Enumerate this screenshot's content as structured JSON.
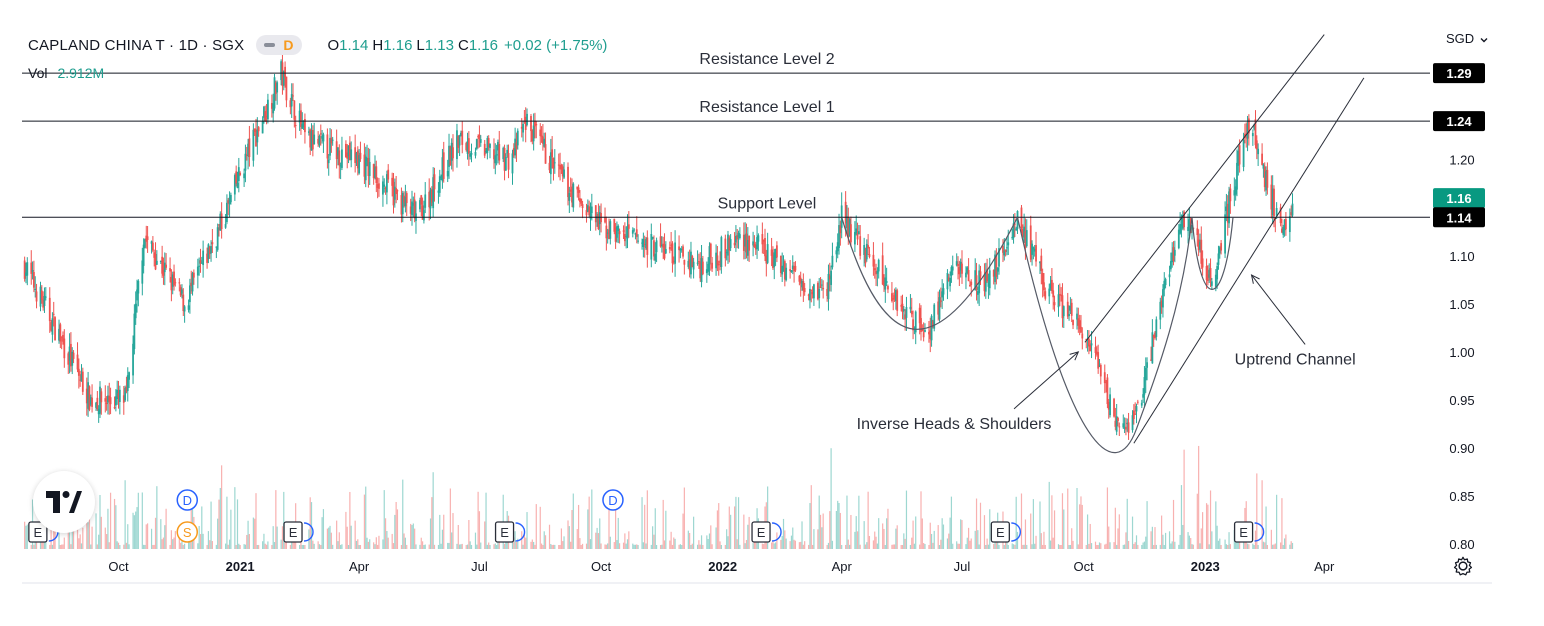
{
  "header": {
    "symbol": "CAPLAND CHINA T · 1D · SGX",
    "pill_label": "D",
    "ohlc": {
      "o_label": "O",
      "o": "1.14",
      "h_label": "H",
      "h": "1.16",
      "l_label": "L",
      "l": "1.13",
      "c_label": "C",
      "c": "1.16",
      "change": "+0.02 (+1.75%)"
    },
    "volume_label": "Vol",
    "volume_value": "2.912M",
    "currency": "SGD"
  },
  "colors": {
    "up": "#26a69a",
    "down": "#ef5350",
    "badge_bg": "#000000",
    "last_price_bg": "#089981",
    "annotation": "#2a2e39",
    "event_blue": "#2962ff",
    "event_orange": "#f79a1d"
  },
  "icons": {
    "logo": "tradingview-logo-icon",
    "settings": "gear-icon",
    "currency_menu": "chevron-down-icon"
  },
  "chart_data": {
    "type": "candlestick",
    "x_axis": {
      "type": "date",
      "ticks": [
        {
          "date": "2020-10-01",
          "label": "Oct",
          "bold": false
        },
        {
          "date": "2021-01-01",
          "label": "2021",
          "bold": true
        },
        {
          "date": "2021-04-01",
          "label": "Apr",
          "bold": false
        },
        {
          "date": "2021-07-01",
          "label": "Jul",
          "bold": false
        },
        {
          "date": "2021-10-01",
          "label": "Oct",
          "bold": false
        },
        {
          "date": "2022-01-01",
          "label": "2022",
          "bold": true
        },
        {
          "date": "2022-04-01",
          "label": "Apr",
          "bold": false
        },
        {
          "date": "2022-07-01",
          "label": "Jul",
          "bold": false
        },
        {
          "date": "2022-10-01",
          "label": "Oct",
          "bold": false
        },
        {
          "date": "2023-01-01",
          "label": "2023",
          "bold": true
        },
        {
          "date": "2023-04-01",
          "label": "Apr",
          "bold": false
        }
      ],
      "range": [
        "2020-07-20",
        "2023-06-20"
      ]
    },
    "y_axis": {
      "range": [
        0.795,
        1.34
      ],
      "ticks": [
        "1.29",
        "1.24",
        "1.20",
        "1.16",
        "1.14",
        "1.10",
        "1.05",
        "1.00",
        "0.95",
        "0.90",
        "0.85",
        "0.80"
      ]
    },
    "price_badges": [
      {
        "value": 1.29,
        "label": "1.29",
        "kind": "level"
      },
      {
        "value": 1.24,
        "label": "1.24",
        "kind": "level"
      },
      {
        "value": 1.16,
        "label": "1.16",
        "kind": "last"
      },
      {
        "value": 1.14,
        "label": "1.14",
        "kind": "level"
      }
    ],
    "key_points": [
      {
        "date": "2020-07-22",
        "price": 1.09
      },
      {
        "date": "2020-09-10",
        "price": 0.95
      },
      {
        "date": "2020-10-07",
        "price": 0.95
      },
      {
        "date": "2020-10-20",
        "price": 1.12
      },
      {
        "date": "2020-11-20",
        "price": 1.05
      },
      {
        "date": "2020-12-20",
        "price": 1.14
      },
      {
        "date": "2021-01-05",
        "price": 1.2
      },
      {
        "date": "2021-02-01",
        "price": 1.29
      },
      {
        "date": "2021-02-20",
        "price": 1.22
      },
      {
        "date": "2021-04-01",
        "price": 1.2
      },
      {
        "date": "2021-05-15",
        "price": 1.14
      },
      {
        "date": "2021-06-15",
        "price": 1.22
      },
      {
        "date": "2021-07-25",
        "price": 1.2
      },
      {
        "date": "2021-08-05",
        "price": 1.24
      },
      {
        "date": "2021-09-01",
        "price": 1.18
      },
      {
        "date": "2021-10-01",
        "price": 1.13
      },
      {
        "date": "2021-11-10",
        "price": 1.11
      },
      {
        "date": "2021-12-15",
        "price": 1.09
      },
      {
        "date": "2022-01-15",
        "price": 1.12
      },
      {
        "date": "2022-02-15",
        "price": 1.09
      },
      {
        "date": "2022-03-20",
        "price": 1.06
      },
      {
        "date": "2022-04-01",
        "price": 1.14
      },
      {
        "date": "2022-05-15",
        "price": 1.05
      },
      {
        "date": "2022-06-05",
        "price": 1.02
      },
      {
        "date": "2022-06-25",
        "price": 1.09
      },
      {
        "date": "2022-07-20",
        "price": 1.07
      },
      {
        "date": "2022-08-12",
        "price": 1.14
      },
      {
        "date": "2022-09-01",
        "price": 1.07
      },
      {
        "date": "2022-10-01",
        "price": 1.02
      },
      {
        "date": "2022-10-20",
        "price": 0.95
      },
      {
        "date": "2022-11-01",
        "price": 0.91
      },
      {
        "date": "2022-11-15",
        "price": 0.96
      },
      {
        "date": "2022-11-25",
        "price": 1.03
      },
      {
        "date": "2022-12-10",
        "price": 1.12
      },
      {
        "date": "2022-12-20",
        "price": 1.14
      },
      {
        "date": "2023-01-05",
        "price": 1.07
      },
      {
        "date": "2023-01-15",
        "price": 1.13
      },
      {
        "date": "2023-01-28",
        "price": 1.21
      },
      {
        "date": "2023-02-05",
        "price": 1.24
      },
      {
        "date": "2023-02-15",
        "price": 1.18
      },
      {
        "date": "2023-02-28",
        "price": 1.13
      },
      {
        "date": "2023-03-08",
        "price": 1.16
      }
    ],
    "horizontal_levels": [
      {
        "price": 1.29,
        "label": "Resistance Level 2"
      },
      {
        "price": 1.24,
        "label": "Resistance Level 1"
      },
      {
        "price": 1.14,
        "label": "Support Level"
      }
    ],
    "channel_lines": [
      {
        "from": {
          "date": "2022-10-02",
          "price": 1.01
        },
        "to": {
          "date": "2023-04-01",
          "price": 1.33
        }
      },
      {
        "from": {
          "date": "2022-11-08",
          "price": 0.905
        },
        "to": {
          "date": "2023-05-01",
          "price": 1.285
        }
      }
    ],
    "annotations": [
      {
        "text": "Inverse Heads & Shoulders",
        "date": "2022-06-25",
        "price": 0.92,
        "arrow_to": {
          "date": "2022-09-27",
          "price": 1.0
        }
      },
      {
        "text": "Uptrend Channel",
        "date": "2023-03-10",
        "price": 0.987,
        "arrow_to": {
          "date": "2023-02-05",
          "price": 1.08
        }
      }
    ],
    "events": [
      {
        "date": "2020-08-01",
        "kind": "E"
      },
      {
        "date": "2020-11-22",
        "kind": "D"
      },
      {
        "date": "2020-11-22",
        "kind": "S"
      },
      {
        "date": "2021-02-10",
        "kind": "E"
      },
      {
        "date": "2021-07-20",
        "kind": "E"
      },
      {
        "date": "2021-10-10",
        "kind": "D"
      },
      {
        "date": "2022-01-30",
        "kind": "E"
      },
      {
        "date": "2022-07-30",
        "kind": "E"
      },
      {
        "date": "2023-01-30",
        "kind": "E"
      }
    ],
    "grid": false,
    "legend": "top-left"
  }
}
